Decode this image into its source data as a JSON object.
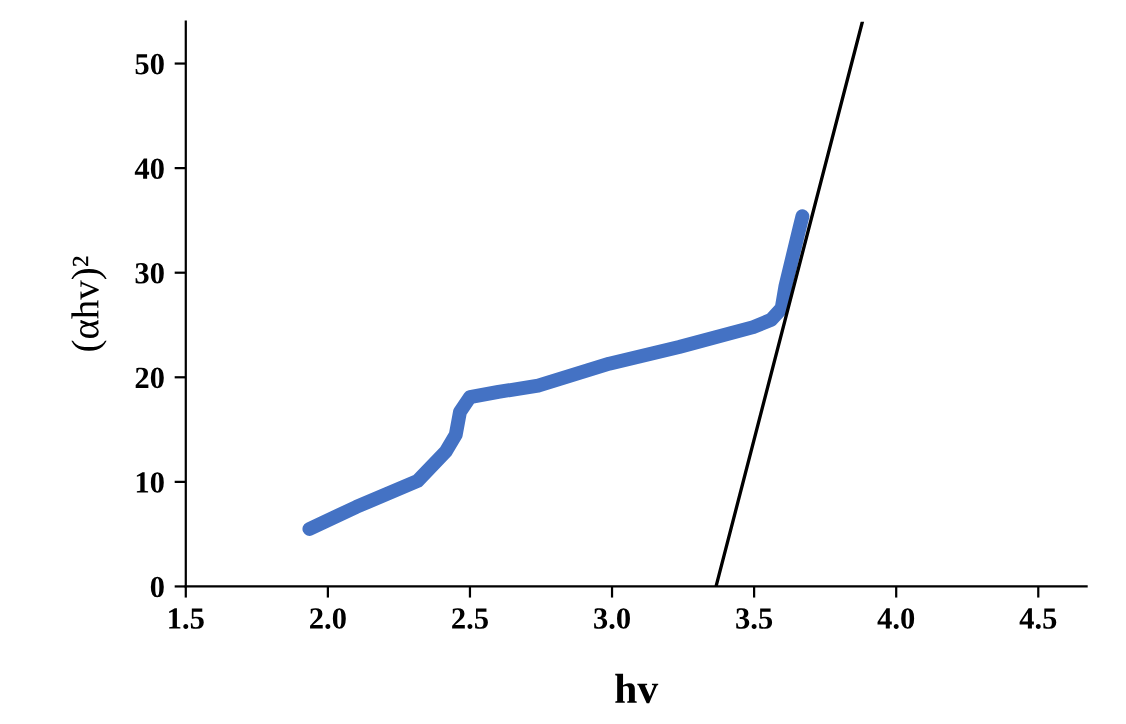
{
  "chart_data": {
    "type": "line",
    "xlabel": "hv",
    "ylabel": "(αhv)²",
    "xlim": [
      1.5,
      4.67
    ],
    "ylim": [
      0,
      54
    ],
    "xticks": [
      {
        "value": 1.5,
        "label": "1.5"
      },
      {
        "value": 2.0,
        "label": "2.0"
      },
      {
        "value": 2.5,
        "label": "2.5"
      },
      {
        "value": 3.0,
        "label": "3.0"
      },
      {
        "value": 3.5,
        "label": "3.5"
      },
      {
        "value": 4.0,
        "label": "4.0"
      },
      {
        "value": 4.5,
        "label": "4.5"
      }
    ],
    "yticks": [
      0,
      10,
      20,
      30,
      40,
      50
    ],
    "grid": false,
    "series": [
      {
        "color": "#4472c4",
        "x": [
          1.935,
          2.1,
          2.316,
          2.415,
          2.45,
          2.465,
          2.5,
          2.6,
          2.74,
          2.99,
          3.236,
          3.497,
          3.56,
          3.597,
          3.61,
          3.66,
          3.67
        ],
        "values": [
          5.5,
          7.6,
          10.1,
          12.9,
          14.5,
          16.7,
          18.1,
          18.6,
          19.2,
          21.3,
          22.9,
          24.8,
          25.5,
          26.6,
          28.7,
          34.3,
          35.4
        ]
      },
      {
        "type": "line",
        "color": "#000000",
        "x": [
          3.366,
          3.881
        ],
        "values": [
          0,
          54
        ]
      }
    ]
  }
}
